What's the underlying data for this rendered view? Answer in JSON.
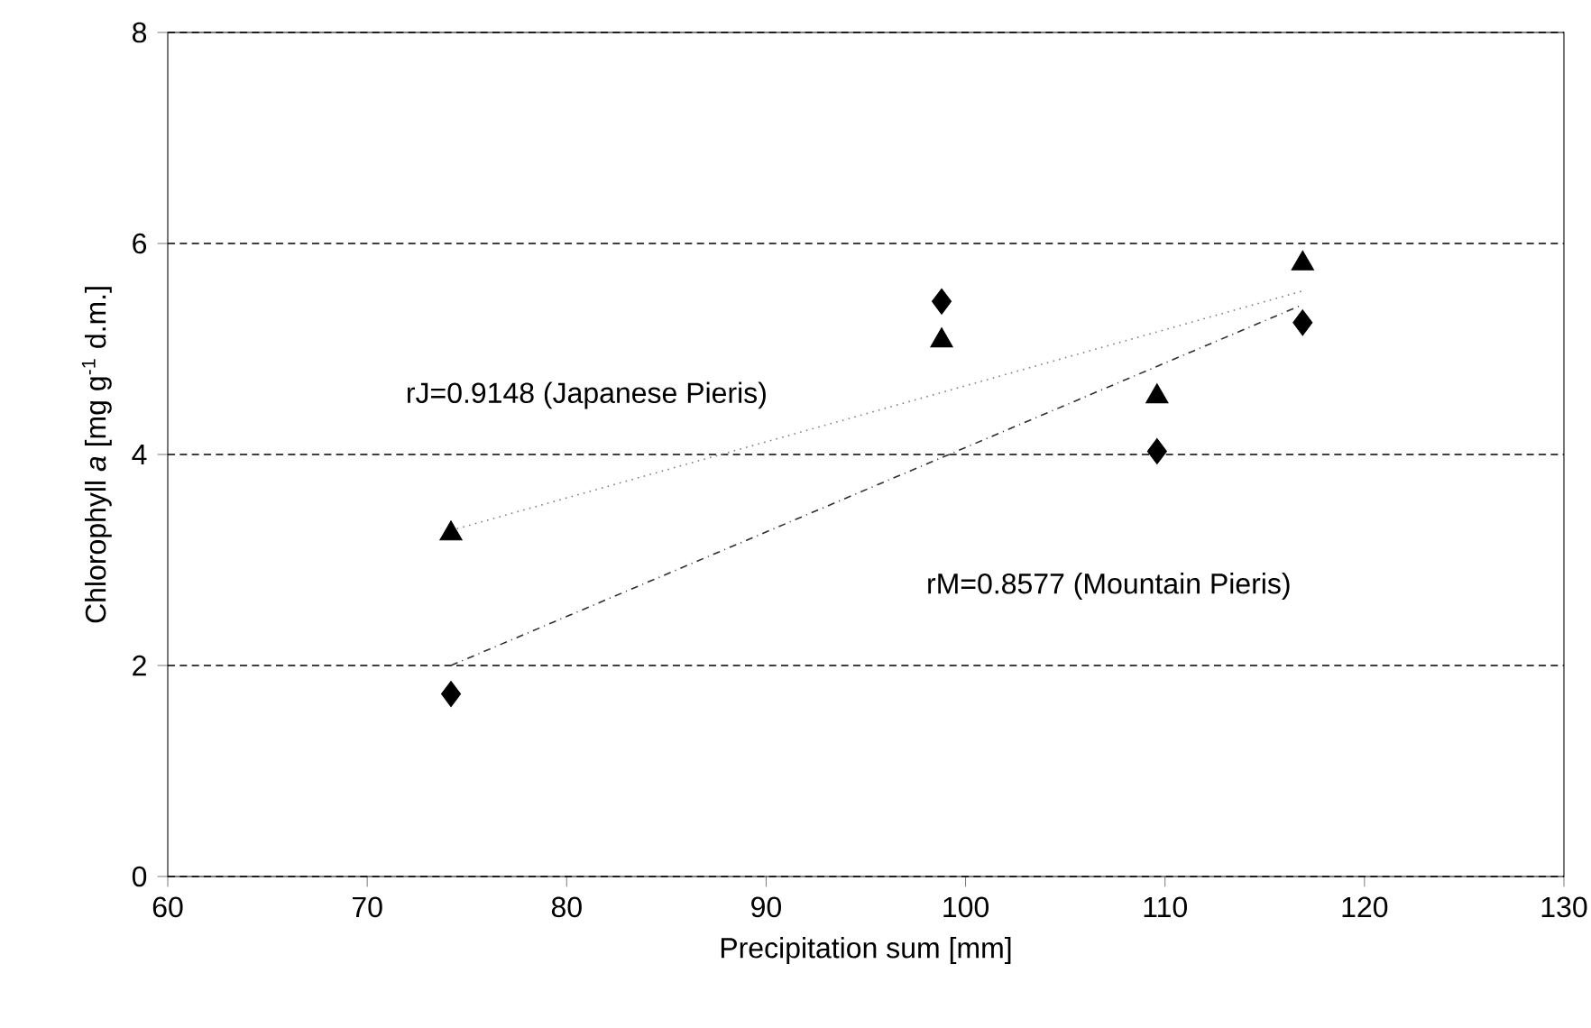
{
  "chart_data": {
    "type": "scatter",
    "xlabel": "Precipitation sum [mm]",
    "ylabel": "Chlorophyll *a* [mg g$^{-1}$ d.m.]",
    "xlim": [
      60,
      130
    ],
    "xticks": [
      60,
      70,
      80,
      90,
      100,
      110,
      120,
      130
    ],
    "ylim": [
      0,
      8
    ],
    "yticks": [
      0,
      2,
      4,
      6,
      8
    ],
    "grid": "y",
    "series": [
      {
        "marker": "triangle",
        "color": "#000000",
        "x": [
          74.2,
          98.8,
          109.6,
          116.9
        ],
        "values": [
          3.25,
          5.08,
          4.55,
          5.81
        ]
      },
      {
        "marker": "diamond",
        "color": "#000000",
        "x": [
          74.2,
          98.8,
          109.6,
          116.9
        ],
        "values": [
          1.73,
          5.45,
          4.03,
          5.25
        ]
      },
      {
        "type": "line",
        "marker": "none",
        "line_style": "dotted",
        "color": "#808080",
        "x": [
          74.2,
          116.9
        ],
        "values": [
          3.28,
          5.55
        ]
      },
      {
        "type": "line",
        "marker": "none",
        "line_style": "dashed",
        "color": "#303030",
        "x": [
          74.2,
          116.9
        ],
        "values": [
          2.0,
          5.42
        ]
      }
    ],
    "annotations": [
      "rJ=0.9148 (Japanese Pieris)",
      "rM=0.8577 (Mountain Pieris)"
    ]
  }
}
